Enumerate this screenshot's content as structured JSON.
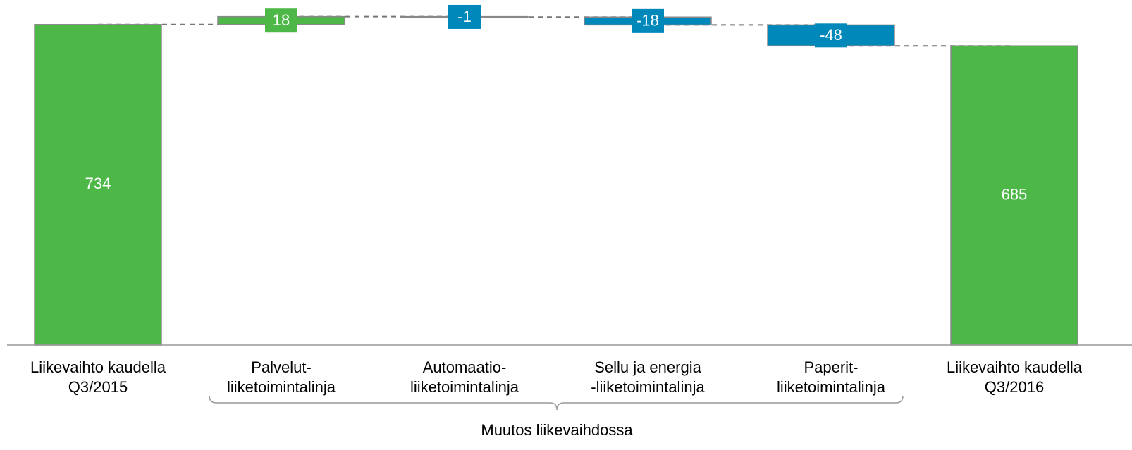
{
  "chart_data": {
    "type": "waterfall",
    "categories": [
      [
        "Liikevaihto kaudella",
        "Q3/2015"
      ],
      [
        "Palvelut-",
        "liiketoimintalinja"
      ],
      [
        "Automaatio-",
        "liiketoimintalinja"
      ],
      [
        "Sellu ja energia",
        "-liiketoimintalinja"
      ],
      [
        "Paperit-",
        "liiketoimintalinja"
      ],
      [
        "Liikevaihto kaudella",
        "Q3/2016"
      ]
    ],
    "values": [
      734,
      18,
      -1,
      -18,
      -48,
      685
    ],
    "measure": [
      "absolute",
      "relative",
      "relative",
      "relative",
      "relative",
      "absolute"
    ],
    "colors": {
      "total": "#4db848",
      "increase": "#4db848",
      "decrease": "#0088bb"
    },
    "ylim": [
      0,
      774
    ],
    "annotation": "Muutos liikevaihdossa"
  }
}
